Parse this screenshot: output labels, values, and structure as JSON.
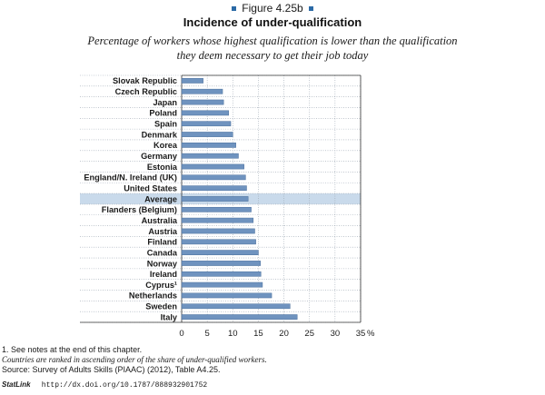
{
  "figure_label": "Figure 4.25b",
  "title": "Incidence of under-qualification",
  "subtitle": "Percentage of workers whose highest qualification is lower than the qualification they deem necessary to get their job today",
  "notes": {
    "note1": "1. See notes at the end of this chapter.",
    "ranking": "Countries are ranked in ascending order of the share of under-qualified workers.",
    "source": "Source: Survey of Adults Skills (PIAAC) (2012), Table A4.25.",
    "statlink_label": "StatLink",
    "url": "http://dx.doi.org/10.1787/888932901752"
  },
  "colors": {
    "bar": "#6f93bf",
    "bar_edge": "#4a6f9c",
    "highlight": "#c9daeb",
    "grid": "#9aa5b1",
    "accent": "#2b6aa6"
  },
  "chart_data": {
    "type": "bar",
    "orientation": "horizontal",
    "categories": [
      "Slovak Republic",
      "Czech Republic",
      "Japan",
      "Poland",
      "Spain",
      "Denmark",
      "Korea",
      "Germany",
      "Estonia",
      "England/N. Ireland (UK)",
      "United States",
      "Average",
      "Flanders (Belgium)",
      "Australia",
      "Austria",
      "Finland",
      "Canada",
      "Norway",
      "Ireland",
      "Cyprus¹",
      "Netherlands",
      "Sweden",
      "Italy"
    ],
    "values": [
      4.2,
      8.0,
      8.2,
      9.2,
      9.6,
      10.0,
      10.6,
      11.1,
      12.2,
      12.5,
      12.7,
      13.0,
      13.6,
      14.0,
      14.3,
      14.5,
      15.0,
      15.4,
      15.5,
      15.8,
      17.6,
      21.2,
      22.6
    ],
    "highlight_category": "Average",
    "xlim": [
      0,
      35
    ],
    "xticks": [
      "0",
      "5",
      "10",
      "15",
      "20",
      "25",
      "30",
      "35"
    ],
    "x_unit": "%",
    "grid": true,
    "xlabel": "",
    "ylabel": ""
  }
}
